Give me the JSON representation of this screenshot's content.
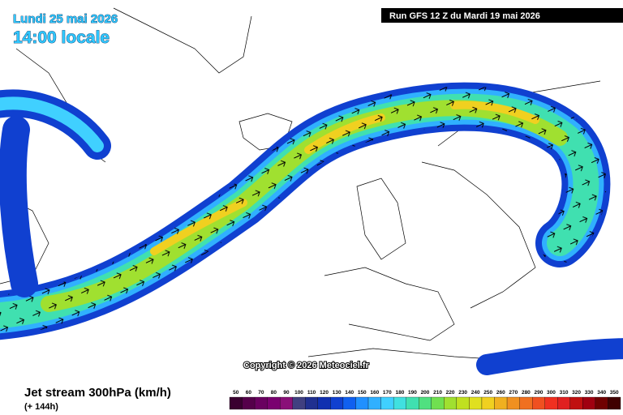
{
  "header": {
    "date": "Lundi 25 mai 2026",
    "time": "14:00 locale",
    "run": "Run GFS 12 Z du Mardi 19 mai 2026"
  },
  "copyright": "Copyright © 2026 Meteociel.fr",
  "footer": {
    "title": "Jet stream 300hPa (km/h)",
    "lead": "(+ 144h)"
  },
  "legend": {
    "labels": [
      50,
      60,
      70,
      80,
      90,
      100,
      110,
      120,
      130,
      140,
      150,
      160,
      170,
      180,
      190,
      200,
      210,
      220,
      230,
      240,
      250,
      260,
      270,
      280,
      290,
      300,
      310,
      320,
      330,
      340,
      350
    ],
    "colors": [
      "#3a0030",
      "#55004a",
      "#6a0060",
      "#7a0070",
      "#8a1078",
      "#404080",
      "#203090",
      "#1030b0",
      "#1040d0",
      "#1060f0",
      "#2090ff",
      "#30b0ff",
      "#40d0ff",
      "#40e0e0",
      "#40e0b0",
      "#50e080",
      "#70e050",
      "#a0e030",
      "#c0e020",
      "#e0e020",
      "#f0d020",
      "#f0b020",
      "#f09020",
      "#f07020",
      "#f05020",
      "#f03020",
      "#e02020",
      "#c01010",
      "#a00010",
      "#700000",
      "#400000"
    ]
  }
}
